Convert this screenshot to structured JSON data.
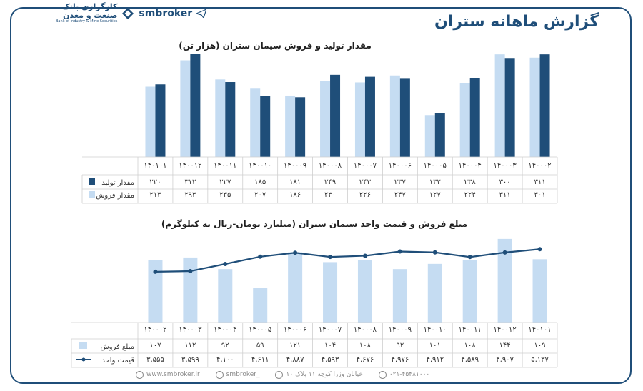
{
  "header": {
    "title": "گزارش ماهانه ستران",
    "brand": "smbroker",
    "bank_name": "کارگزاری بانک",
    "bank_name2": "صنعت و معدن",
    "bank_en": "Bank of Industry & Mine Securities"
  },
  "footer": {
    "website": "www.smbroker.ir",
    "instagram": "smbroker_",
    "address": "خیابان وزرا کوچه ۱۱ پلاک ۱۰",
    "phone": "۰۲۱-۴۵۴۸۱۰۰۰"
  },
  "colors": {
    "dark": "#1f4e79",
    "light": "#c5dcf2",
    "line": "#1f4e79",
    "frame": "#1f4e79"
  },
  "chart_data": [
    {
      "type": "bar",
      "title": "مقدار تولید و فروش سیمان ستران (هزار تن)",
      "categories": [
        "۱۴۰۰۰۲",
        "۱۴۰۰۰۳",
        "۱۴۰۰۰۴",
        "۱۴۰۰۰۵",
        "۱۴۰۰۰۶",
        "۱۴۰۰۰۷",
        "۱۴۰۰۰۸",
        "۱۴۰۰۰۹",
        "۱۴۰۰۱۰",
        "۱۴۰۰۱۱",
        "۱۴۰۰۱۲",
        "۱۴۰۱۰۱"
      ],
      "series": [
        {
          "name": "مقدار تولید",
          "values": [
            311,
            300,
            238,
            132,
            237,
            243,
            249,
            181,
            185,
            227,
            312,
            220
          ],
          "labels": [
            "۳۱۱",
            "۳۰۰",
            "۲۳۸",
            "۱۳۲",
            "۲۳۷",
            "۲۴۳",
            "۲۴۹",
            "۱۸۱",
            "۱۸۵",
            "۲۲۷",
            "۳۱۲",
            "۲۲۰"
          ]
        },
        {
          "name": "مقدار فروش",
          "values": [
            301,
            311,
            224,
            127,
            247,
            226,
            230,
            186,
            207,
            235,
            293,
            213
          ],
          "labels": [
            "۳۰۱",
            "۳۱۱",
            "۲۲۴",
            "۱۲۷",
            "۲۴۷",
            "۲۲۶",
            "۲۳۰",
            "۱۸۶",
            "۲۰۷",
            "۲۳۵",
            "۲۹۳",
            "۲۱۳"
          ]
        }
      ],
      "ylim": [
        0,
        320
      ],
      "grid": false,
      "legend": "data-table"
    },
    {
      "type": "bar",
      "title": "مبلغ فروش و قیمت واحد سیمان ستران (میلیارد تومان-ریال به کیلوگرم)",
      "categories": [
        "۱۴۰۰۰۲",
        "۱۴۰۰۰۳",
        "۱۴۰۰۰۴",
        "۱۴۰۰۰۵",
        "۱۴۰۰۰۶",
        "۱۴۰۰۰۷",
        "۱۴۰۰۰۸",
        "۱۴۰۰۰۹",
        "۱۴۰۰۱۰",
        "۱۴۰۰۱۱",
        "۱۴۰۰۱۲",
        "۱۴۰۱۰۱"
      ],
      "series": [
        {
          "name": "مبلغ فروش",
          "type": "bar",
          "values": [
            107,
            112,
            92,
            59,
            121,
            104,
            108,
            92,
            101,
            108,
            144,
            109
          ],
          "labels": [
            "۱۰۷",
            "۱۱۲",
            "۹۲",
            "۵۹",
            "۱۲۱",
            "۱۰۴",
            "۱۰۸",
            "۹۲",
            "۱۰۱",
            "۱۰۸",
            "۱۴۴",
            "۱۰۹"
          ]
        },
        {
          "name": "قیمت واحد",
          "type": "line",
          "values": [
            3555,
            3599,
            4100,
            4611,
            4887,
            4593,
            4676,
            4976,
            4912,
            4589,
            4907,
            5137
          ],
          "labels": [
            "۳,۵۵۵",
            "۳,۵۹۹",
            "۴,۱۰۰",
            "۴,۶۱۱",
            "۴,۸۸۷",
            "۴,۵۹۳",
            "۴,۶۷۶",
            "۴,۹۷۶",
            "۴,۹۱۲",
            "۴,۵۸۹",
            "۴,۹۰۷",
            "۵,۱۳۷"
          ]
        }
      ],
      "ylim": [
        0,
        150
      ],
      "ylim_line": [
        0,
        6100
      ],
      "grid": false,
      "legend": "data-table"
    }
  ]
}
